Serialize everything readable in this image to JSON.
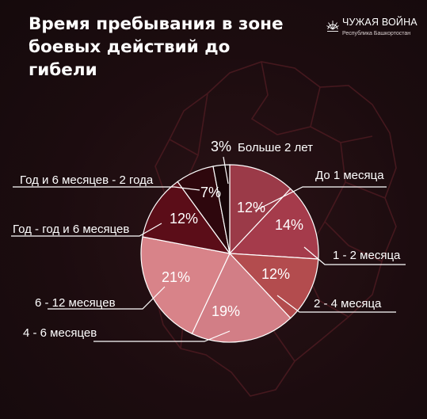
{
  "header": {
    "title_line1": "Время пребывания в зоне",
    "title_line2": "боевых действий до гибели"
  },
  "brand": {
    "name": "ЧУЖАЯ ВОЙНА",
    "subtitle": "Республика Башкортостан",
    "icon": "sunburst-emblem-icon"
  },
  "colors": {
    "background": "#1c0c0f",
    "map_outline": "#4a1a20"
  },
  "chart_data": {
    "type": "pie",
    "title": "Время пребывания в зоне боевых действий до гибели",
    "slices": [
      {
        "label": "До 1 месяца",
        "value": 12,
        "value_label": "12%",
        "color": "#9b3a48"
      },
      {
        "label": "1 - 2 месяца",
        "value": 14,
        "value_label": "14%",
        "color": "#a53b4b"
      },
      {
        "label": "2 - 4 месяца",
        "value": 12,
        "value_label": "12%",
        "color": "#b34c4e"
      },
      {
        "label": "4 - 6 месяцев",
        "value": 19,
        "value_label": "19%",
        "color": "#d27e86"
      },
      {
        "label": "6 - 12 месяцев",
        "value": 21,
        "value_label": "21%",
        "color": "#d88389"
      },
      {
        "label": "Год - год и 6 месяцев",
        "value": 12,
        "value_label": "12%",
        "color": "#5b0d18"
      },
      {
        "label": "Год и 6 месяцев - 2 года",
        "value": 7,
        "value_label": "7%",
        "color": "#2e070d"
      },
      {
        "label": "Больше 2 лет",
        "value": 3,
        "value_label": "3%",
        "color": "#170508"
      }
    ]
  }
}
